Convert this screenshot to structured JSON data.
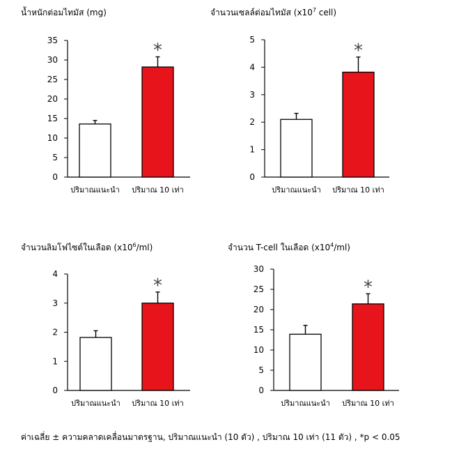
{
  "chart_data": [
    {
      "type": "bar",
      "title_pre": "น้ำหนักต่อมไทมัส (mg)",
      "title_sup": "",
      "title_post": "",
      "categories": [
        "ปริมาณแนะนำ",
        "ปริมาณ 10 เท่า"
      ],
      "values": [
        13.6,
        28.2
      ],
      "errors": [
        0.9,
        2.6
      ],
      "significance": [
        "",
        "*"
      ],
      "ylim": [
        0,
        35
      ],
      "yticks": [
        "0",
        "5",
        "10",
        "15",
        "20",
        "25",
        "30",
        "35"
      ],
      "xlabel": "",
      "ylabel": ""
    },
    {
      "type": "bar",
      "title_pre": "จำนวนเซลล์ต่อมไทมัส (x10",
      "title_sup": "7",
      "title_post": " cell)",
      "categories": [
        "ปริมาณแนะนำ",
        "ปริมาณ 10 เท่า"
      ],
      "values": [
        2.1,
        3.82
      ],
      "errors": [
        0.22,
        0.55
      ],
      "significance": [
        "",
        "*"
      ],
      "ylim": [
        0,
        5
      ],
      "yticks": [
        "0",
        "1",
        "2",
        "3",
        "4",
        "5"
      ],
      "xlabel": "",
      "ylabel": ""
    },
    {
      "type": "bar",
      "title_pre": "จำนวนลิมโฟไซต์ในเลือด (x10",
      "title_sup": "6",
      "title_post": "/ml)",
      "categories": [
        "ปริมาณแนะนำ",
        "ปริมาณ 10 เท่า"
      ],
      "values": [
        1.82,
        3.0
      ],
      "errors": [
        0.23,
        0.38
      ],
      "significance": [
        "",
        "*"
      ],
      "ylim": [
        0,
        4
      ],
      "yticks": [
        "0",
        "1",
        "2",
        "3",
        "4"
      ],
      "xlabel": "",
      "ylabel": ""
    },
    {
      "type": "bar",
      "title_pre": "จำนวน T-cell ในเลือด (x10",
      "title_sup": "4",
      "title_post": "/ml)",
      "categories": [
        "ปริมาณแนะนำ",
        "ปริมาณ 10 เท่า"
      ],
      "values": [
        13.9,
        21.4
      ],
      "errors": [
        2.2,
        2.5
      ],
      "significance": [
        "",
        "*"
      ],
      "ylim": [
        0,
        30
      ],
      "yticks": [
        "0",
        "5",
        "10",
        "15",
        "20",
        "25",
        "30"
      ],
      "xlabel": "",
      "ylabel": ""
    }
  ],
  "colors": {
    "control": "#ffffff",
    "treated": "#e8141b",
    "stroke": "#000000",
    "significance": "#444444"
  },
  "footnote": "ค่าเฉลี่ย ± ความคลาดเคลื่อนมาตรฐาน, ปริมาณแนะนำ (10 ตัว) , ปริมาณ 10 เท่า (11 ตัว) , *p < 0.05"
}
